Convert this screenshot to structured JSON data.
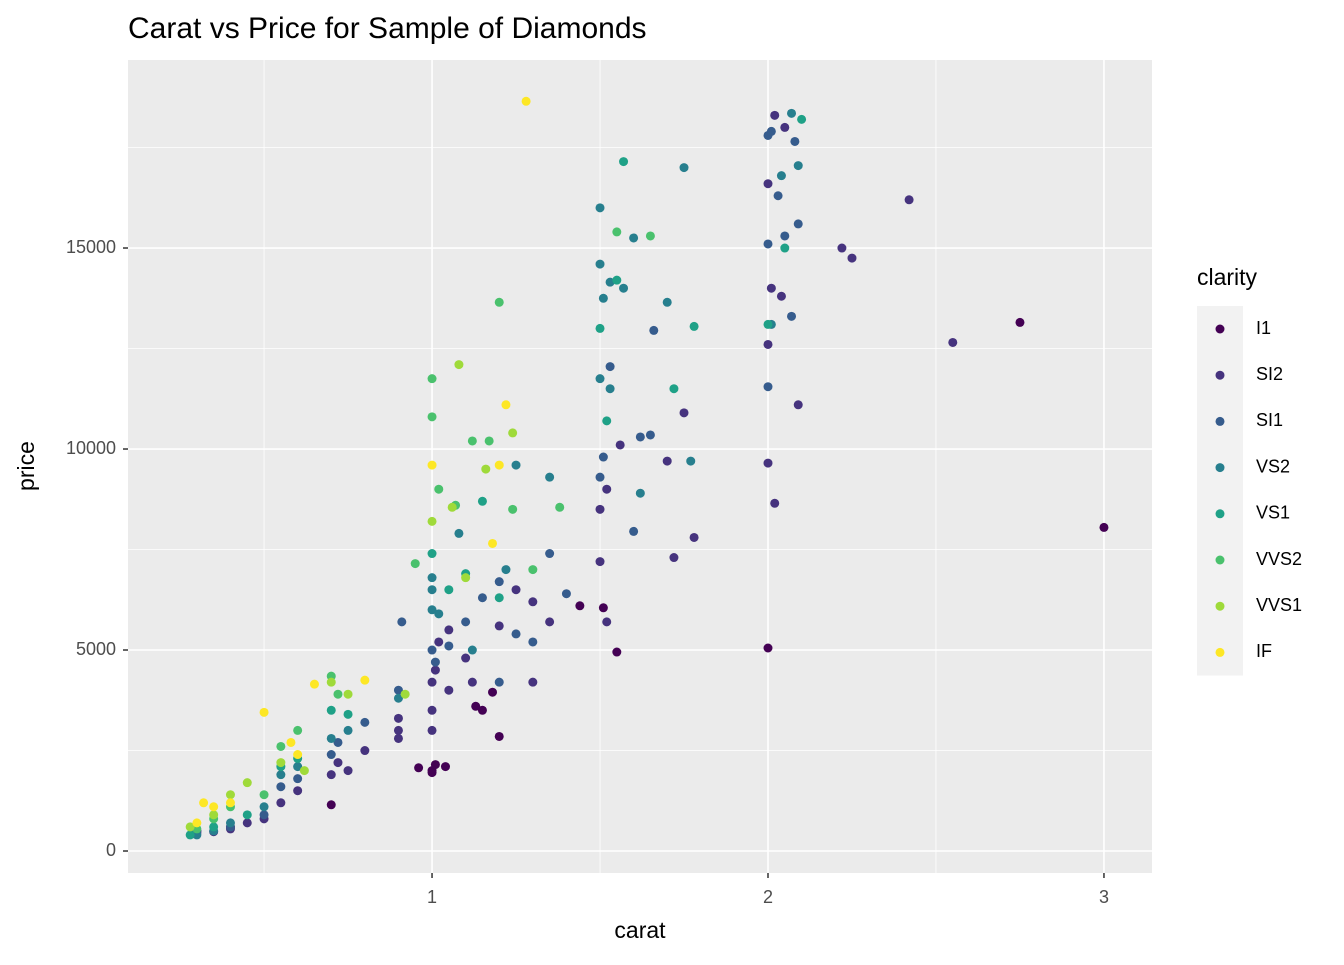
{
  "chart_data": {
    "type": "scatter",
    "title": "Carat vs Price for Sample of Diamonds",
    "x_label": "carat",
    "y_label": "price",
    "legend_title": "clarity",
    "xlim": [
      0.095,
      3.143
    ],
    "ylim": [
      -547,
      19677
    ],
    "xticks": [
      1,
      2,
      3
    ],
    "yticks": [
      0,
      5000,
      10000,
      15000
    ],
    "x_minor_grid": [
      0.5,
      1.5,
      2.5
    ],
    "y_minor_grid": [
      2500,
      7500,
      12500,
      17500
    ],
    "grid": true,
    "legend": "right",
    "series": [
      {
        "name": "I1",
        "color": "#440154",
        "x": [
          0.7,
          0.96,
          1.0,
          1.0,
          1.04,
          1.01,
          1.13,
          1.15,
          1.18,
          1.2,
          1.44,
          1.51,
          1.55,
          2.0,
          2.75,
          3.0,
          0.3,
          0.4
        ],
        "y": [
          1150,
          2070,
          2000,
          1950,
          2100,
          2150,
          3600,
          3500,
          3950,
          2850,
          6100,
          6050,
          4950,
          5050,
          13150,
          8050,
          500,
          600
        ]
      },
      {
        "name": "SI2",
        "color": "#46337E",
        "x": [
          0.3,
          0.35,
          0.4,
          0.45,
          0.5,
          0.55,
          0.6,
          0.7,
          0.72,
          0.75,
          0.8,
          0.9,
          0.9,
          1.0,
          1.0,
          1.01,
          1.02,
          1.05,
          1.1,
          1.12,
          1.2,
          1.25,
          1.3,
          1.35,
          1.5,
          1.52,
          1.5,
          1.56,
          1.7,
          1.72,
          1.78,
          1.75,
          2.0,
          2.02,
          2.0,
          2.04,
          2.09,
          2.01,
          2.0,
          2.02,
          2.05,
          2.22,
          2.25,
          2.42,
          2.55,
          1.52,
          1.3,
          0.9,
          1.0,
          1.05
        ],
        "y": [
          450,
          480,
          550,
          700,
          800,
          1200,
          1500,
          1900,
          2200,
          2000,
          2500,
          2800,
          3000,
          3500,
          4200,
          4500,
          5200,
          5500,
          4800,
          4200,
          5600,
          6500,
          6200,
          5700,
          8500,
          9000,
          7200,
          10100,
          9700,
          7300,
          7800,
          10900,
          9650,
          8650,
          12600,
          13800,
          11100,
          14000,
          16600,
          18300,
          18000,
          15000,
          14750,
          16200,
          12650,
          5700,
          4200,
          3300,
          3000,
          4000
        ]
      },
      {
        "name": "SI1",
        "color": "#365C8D",
        "x": [
          0.3,
          0.4,
          0.5,
          0.55,
          0.6,
          0.7,
          0.72,
          0.8,
          0.9,
          0.91,
          1.0,
          1.01,
          1.05,
          1.1,
          1.15,
          1.2,
          1.25,
          1.3,
          1.35,
          1.4,
          1.5,
          1.51,
          1.6,
          1.62,
          1.66,
          1.65,
          2.0,
          2.01,
          2.0,
          2.03,
          2.05,
          2.07,
          2.09,
          2.0,
          2.08,
          1.53,
          1.2
        ],
        "y": [
          500,
          600,
          900,
          1600,
          1800,
          2400,
          2700,
          3200,
          4000,
          5700,
          5000,
          4700,
          5100,
          5700,
          6300,
          6700,
          5400,
          5200,
          7400,
          6400,
          9300,
          9800,
          7950,
          10300,
          12950,
          10350,
          17800,
          17900,
          15100,
          16300,
          15300,
          13300,
          15600,
          11550,
          17650,
          12050,
          4200
        ]
      },
      {
        "name": "VS2",
        "color": "#277F8E",
        "x": [
          0.3,
          0.35,
          0.4,
          0.5,
          0.55,
          0.6,
          0.7,
          0.75,
          0.9,
          1.0,
          1.0,
          1.02,
          1.08,
          1.12,
          1.22,
          1.25,
          1.35,
          1.5,
          1.5,
          1.51,
          1.53,
          1.57,
          1.6,
          1.7,
          1.77,
          1.75,
          1.5,
          2.04,
          2.01,
          2.09,
          2.07,
          1.53,
          1.0,
          1.62
        ],
        "y": [
          400,
          500,
          700,
          1100,
          1900,
          2100,
          2800,
          3000,
          3800,
          6000,
          6500,
          5900,
          7900,
          5000,
          7000,
          9600,
          9300,
          16000,
          14600,
          13750,
          14150,
          14000,
          15250,
          13650,
          9700,
          17000,
          11750,
          16800,
          13100,
          17050,
          18350,
          11500,
          6800,
          8900
        ]
      },
      {
        "name": "VS1",
        "color": "#1FA187",
        "x": [
          0.28,
          0.35,
          0.45,
          0.55,
          0.7,
          0.75,
          1.0,
          1.05,
          1.1,
          1.15,
          1.5,
          1.55,
          1.57,
          1.78,
          1.72,
          2.0,
          2.1,
          2.05,
          1.52,
          1.2,
          0.6
        ],
        "y": [
          400,
          600,
          900,
          2100,
          3500,
          3400,
          7400,
          6500,
          6900,
          8700,
          13000,
          14200,
          17150,
          13050,
          11500,
          13100,
          18200,
          15000,
          10700,
          6300,
          2300
        ]
      },
      {
        "name": "VVS2",
        "color": "#4AC16D",
        "x": [
          0.3,
          0.35,
          0.4,
          0.5,
          0.55,
          0.6,
          0.7,
          0.72,
          0.95,
          1.0,
          1.0,
          1.02,
          1.07,
          1.12,
          1.17,
          1.2,
          1.24,
          1.38,
          1.65,
          1.55,
          1.3
        ],
        "y": [
          550,
          800,
          1100,
          1400,
          2600,
          3000,
          4350,
          3900,
          7150,
          11750,
          10800,
          9000,
          8600,
          10200,
          10200,
          13650,
          8500,
          8550,
          15300,
          15400,
          7000
        ]
      },
      {
        "name": "VVS1",
        "color": "#9FDA3A",
        "x": [
          0.28,
          0.35,
          0.4,
          0.45,
          0.55,
          0.62,
          0.7,
          0.75,
          1.0,
          1.06,
          1.08,
          1.16,
          1.24,
          1.1,
          0.92
        ],
        "y": [
          600,
          900,
          1400,
          1700,
          2200,
          2000,
          4200,
          3900,
          8200,
          8550,
          12100,
          9500,
          10400,
          6800,
          3900
        ]
      },
      {
        "name": "IF",
        "color": "#FDE725",
        "x": [
          0.3,
          0.32,
          0.35,
          0.4,
          0.5,
          0.58,
          0.65,
          0.8,
          1.0,
          1.22,
          1.2,
          1.18,
          1.28,
          0.6
        ],
        "y": [
          700,
          1200,
          1100,
          1200,
          3450,
          2700,
          4150,
          4250,
          9600,
          11100,
          9600,
          7650,
          18650,
          2400
        ]
      }
    ]
  }
}
